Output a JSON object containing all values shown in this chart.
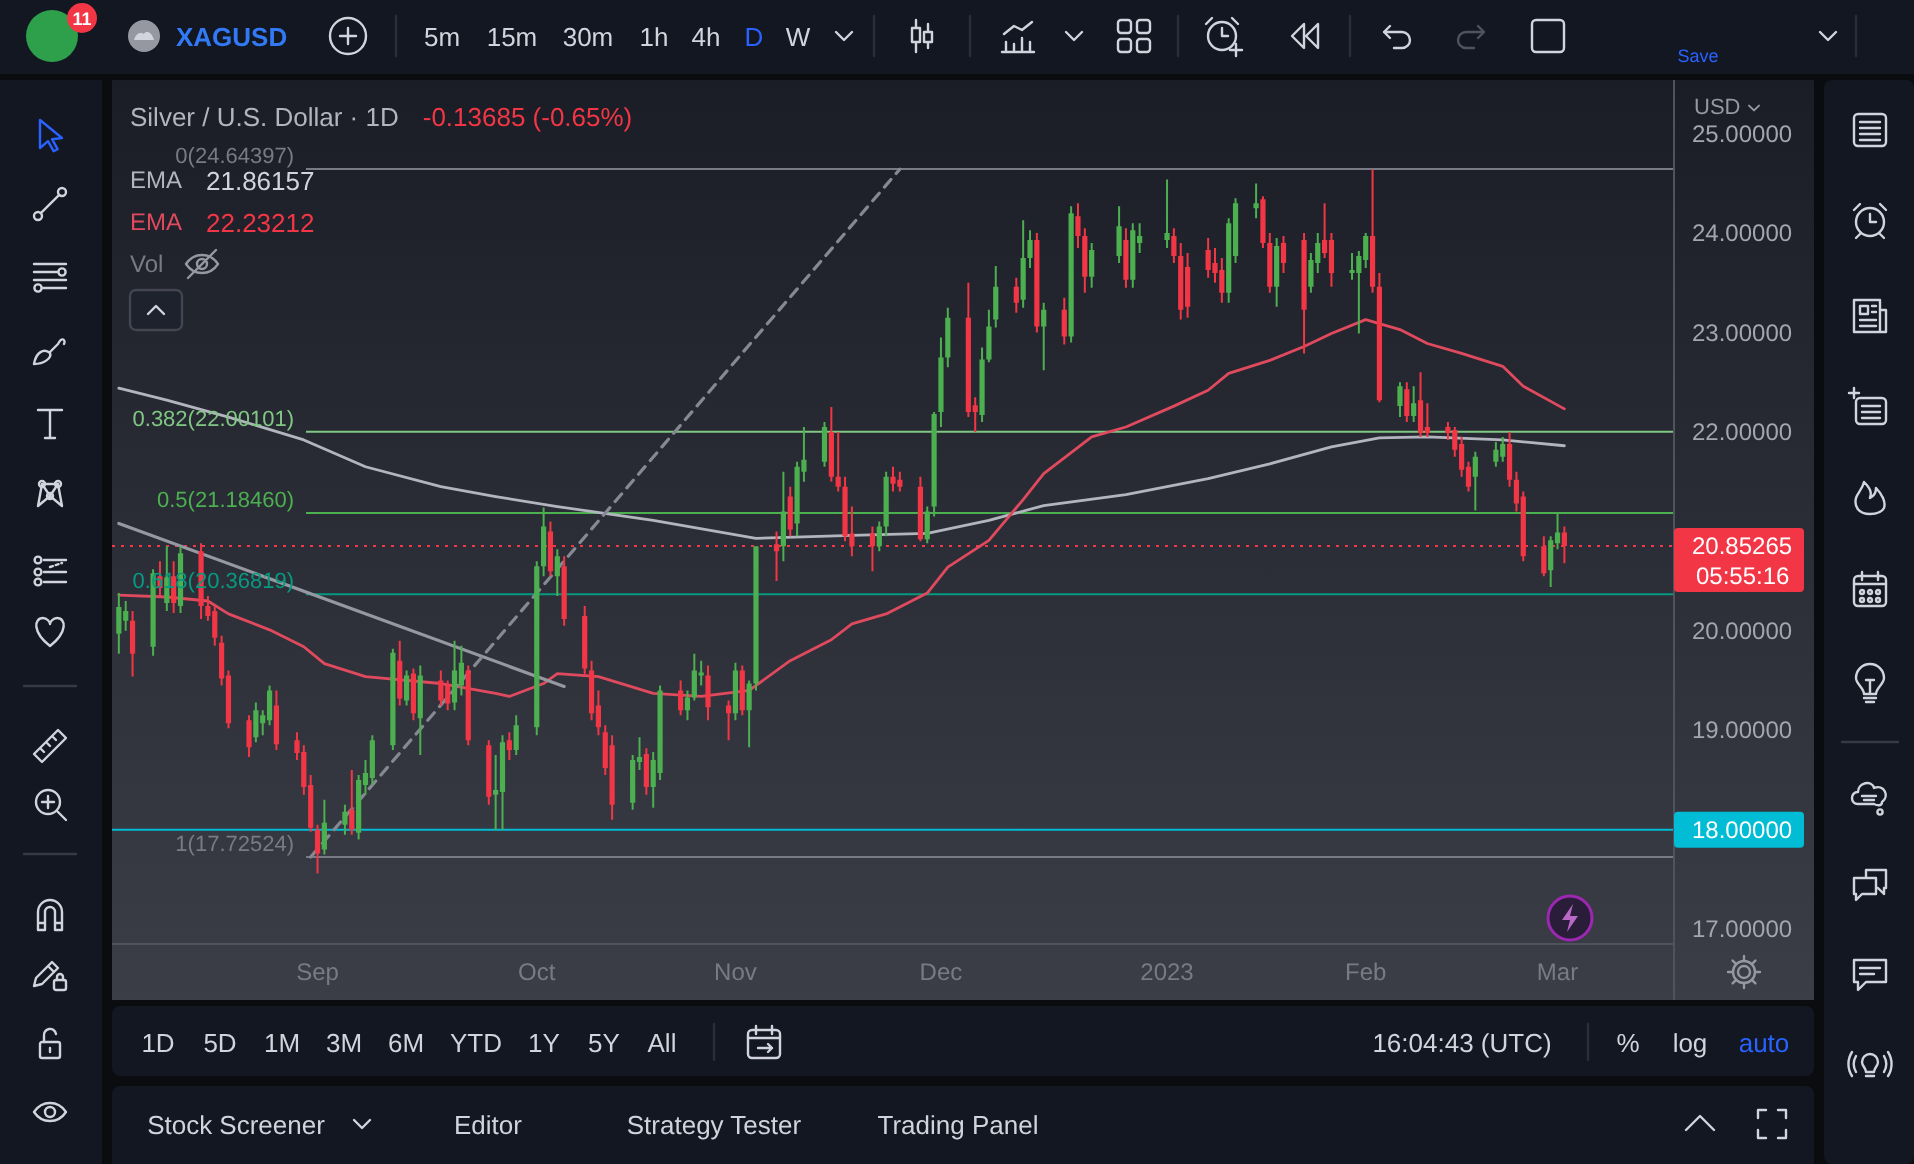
{
  "chart_data": {
    "type": "candlestick",
    "title": "Silver / U.S. Dollar · 1D",
    "subtitle": "-0.13685 (-0.65%)",
    "x": [
      "2022-08-03",
      "2022-08-04",
      "2022-08-05",
      "2022-08-08",
      "2022-08-09",
      "2022-08-10",
      "2022-08-11",
      "2022-08-12",
      "2022-08-15",
      "2022-08-16",
      "2022-08-17",
      "2022-08-18",
      "2022-08-19",
      "2022-08-22",
      "2022-08-23",
      "2022-08-24",
      "2022-08-25",
      "2022-08-26",
      "2022-08-29",
      "2022-08-30",
      "2022-08-31",
      "2022-09-01",
      "2022-09-02",
      "2022-09-05",
      "2022-09-06",
      "2022-09-07",
      "2022-09-08",
      "2022-09-09",
      "2022-09-12",
      "2022-09-13",
      "2022-09-14",
      "2022-09-15",
      "2022-09-16",
      "2022-09-19",
      "2022-09-20",
      "2022-09-21",
      "2022-09-22",
      "2022-09-23",
      "2022-09-26",
      "2022-09-27",
      "2022-09-28",
      "2022-09-29",
      "2022-09-30",
      "2022-10-03",
      "2022-10-04",
      "2022-10-05",
      "2022-10-06",
      "2022-10-07",
      "2022-10-10",
      "2022-10-11",
      "2022-10-12",
      "2022-10-13",
      "2022-10-14",
      "2022-10-17",
      "2022-10-18",
      "2022-10-19",
      "2022-10-20",
      "2022-10-21",
      "2022-10-24",
      "2022-10-25",
      "2022-10-26",
      "2022-10-27",
      "2022-10-28",
      "2022-10-31",
      "2022-11-01",
      "2022-11-02",
      "2022-11-03",
      "2022-11-04",
      "2022-11-07",
      "2022-11-08",
      "2022-11-09",
      "2022-11-10",
      "2022-11-11",
      "2022-11-14",
      "2022-11-15",
      "2022-11-16",
      "2022-11-17",
      "2022-11-18",
      "2022-11-21",
      "2022-11-22",
      "2022-11-23",
      "2022-11-24",
      "2022-11-25",
      "2022-11-28",
      "2022-11-29",
      "2022-11-30",
      "2022-12-01",
      "2022-12-02",
      "2022-12-05",
      "2022-12-06",
      "2022-12-07",
      "2022-12-08",
      "2022-12-09",
      "2022-12-12",
      "2022-12-13",
      "2022-12-14",
      "2022-12-15",
      "2022-12-16",
      "2022-12-19",
      "2022-12-20",
      "2022-12-21",
      "2022-12-22",
      "2022-12-23",
      "2022-12-27",
      "2022-12-28",
      "2022-12-29",
      "2022-12-30",
      "2023-01-03",
      "2023-01-04",
      "2023-01-05",
      "2023-01-06",
      "2023-01-09",
      "2023-01-10",
      "2023-01-11",
      "2023-01-12",
      "2023-01-13",
      "2023-01-16",
      "2023-01-17",
      "2023-01-18",
      "2023-01-19",
      "2023-01-20",
      "2023-01-23",
      "2023-01-24",
      "2023-01-25",
      "2023-01-26",
      "2023-01-27",
      "2023-01-30",
      "2023-01-31",
      "2023-02-01",
      "2023-02-02",
      "2023-02-03",
      "2023-02-06",
      "2023-02-07",
      "2023-02-08",
      "2023-02-09",
      "2023-02-10",
      "2023-02-13",
      "2023-02-14",
      "2023-02-15",
      "2023-02-16",
      "2023-02-17",
      "2023-02-20",
      "2023-02-21",
      "2023-02-22",
      "2023-02-23",
      "2023-02-24",
      "2023-02-27",
      "2023-02-28",
      "2023-03-01",
      "2023-03-02"
    ],
    "ohlc": [
      [
        19.97,
        20.38,
        19.77,
        20.24
      ],
      [
        20.1,
        20.3,
        20.0,
        20.2
      ],
      [
        20.1,
        20.2,
        19.54,
        19.77
      ],
      [
        19.84,
        20.62,
        19.75,
        20.58
      ],
      [
        20.55,
        20.7,
        20.35,
        20.43
      ],
      [
        20.28,
        20.85,
        20.2,
        20.54
      ],
      [
        20.55,
        20.7,
        20.18,
        20.28
      ],
      [
        20.25,
        20.85,
        20.18,
        20.78
      ],
      [
        20.8,
        20.88,
        20.12,
        20.25
      ],
      [
        20.25,
        20.35,
        20.1,
        20.15
      ],
      [
        20.2,
        20.25,
        19.85,
        19.93
      ],
      [
        19.88,
        19.95,
        19.45,
        19.52
      ],
      [
        19.55,
        19.6,
        19.02,
        19.07
      ],
      [
        19.1,
        19.15,
        18.73,
        18.83
      ],
      [
        18.93,
        19.28,
        18.88,
        19.2
      ],
      [
        19.07,
        19.2,
        18.95,
        19.15
      ],
      [
        19.1,
        19.45,
        19.05,
        19.4
      ],
      [
        19.25,
        19.4,
        18.8,
        18.86
      ],
      [
        18.9,
        18.98,
        18.7,
        18.77
      ],
      [
        18.78,
        18.85,
        18.35,
        18.43
      ],
      [
        18.45,
        18.55,
        17.98,
        18.02
      ],
      [
        18.0,
        18.05,
        17.56,
        17.76
      ],
      [
        17.8,
        18.3,
        17.75,
        18.07
      ],
      [
        18.05,
        18.25,
        17.95,
        18.18
      ],
      [
        18.2,
        18.6,
        17.95,
        18.0
      ],
      [
        17.97,
        18.55,
        17.9,
        18.5
      ],
      [
        18.45,
        18.7,
        18.35,
        18.57
      ],
      [
        18.52,
        18.95,
        18.45,
        18.9
      ],
      [
        18.85,
        19.82,
        18.8,
        19.78
      ],
      [
        19.7,
        19.9,
        19.25,
        19.32
      ],
      [
        19.3,
        19.6,
        19.25,
        19.55
      ],
      [
        19.57,
        19.62,
        19.1,
        19.17
      ],
      [
        19.12,
        19.65,
        18.75,
        19.55
      ],
      [
        19.5,
        19.6,
        19.25,
        19.3
      ],
      [
        19.45,
        19.5,
        19.2,
        19.27
      ],
      [
        19.28,
        19.9,
        19.2,
        19.6
      ],
      [
        19.45,
        19.85,
        19.35,
        19.68
      ],
      [
        19.6,
        19.65,
        18.85,
        18.9
      ],
      [
        18.85,
        18.9,
        18.25,
        18.33
      ],
      [
        18.35,
        18.75,
        18.0,
        18.4
      ],
      [
        18.38,
        18.95,
        18.0,
        18.88
      ],
      [
        18.9,
        18.98,
        18.7,
        18.8
      ],
      [
        18.8,
        19.15,
        18.75,
        19.05
      ],
      [
        19.03,
        20.7,
        18.95,
        20.65
      ],
      [
        20.65,
        21.24,
        20.55,
        21.05
      ],
      [
        21.0,
        21.1,
        20.55,
        20.6
      ],
      [
        20.55,
        20.82,
        20.35,
        20.75
      ],
      [
        20.65,
        20.75,
        20.05,
        20.12
      ],
      [
        20.15,
        20.25,
        19.55,
        19.62
      ],
      [
        19.6,
        19.7,
        19.1,
        19.17
      ],
      [
        19.25,
        19.4,
        18.95,
        19.03
      ],
      [
        18.98,
        19.05,
        18.55,
        18.62
      ],
      [
        18.85,
        18.95,
        18.1,
        18.25
      ],
      [
        18.27,
        18.75,
        18.2,
        18.7
      ],
      [
        18.68,
        18.93,
        18.6,
        18.73
      ],
      [
        18.76,
        18.82,
        18.35,
        18.43
      ],
      [
        18.43,
        18.78,
        18.22,
        18.7
      ],
      [
        18.57,
        19.45,
        18.5,
        19.4
      ],
      [
        19.4,
        19.5,
        19.15,
        19.2
      ],
      [
        19.2,
        19.4,
        19.1,
        19.33
      ],
      [
        19.33,
        19.77,
        19.3,
        19.6
      ],
      [
        19.55,
        19.7,
        19.45,
        19.58
      ],
      [
        19.55,
        19.65,
        19.1,
        19.23
      ],
      [
        19.25,
        19.3,
        18.9,
        19.17
      ],
      [
        19.17,
        19.68,
        19.1,
        19.6
      ],
      [
        19.6,
        19.65,
        19.15,
        19.2
      ],
      [
        19.2,
        19.5,
        18.83,
        19.47
      ],
      [
        19.47,
        20.85,
        19.4,
        20.85
      ],
      [
        20.87,
        21.0,
        20.5,
        20.8
      ],
      [
        20.85,
        21.6,
        20.7,
        21.2
      ],
      [
        21.35,
        21.45,
        20.95,
        21.02
      ],
      [
        21.08,
        21.7,
        20.95,
        21.65
      ],
      [
        21.6,
        22.05,
        21.5,
        21.72
      ],
      [
        21.7,
        22.1,
        21.65,
        22.05
      ],
      [
        22.0,
        22.25,
        21.5,
        21.55
      ],
      [
        21.55,
        22.0,
        21.4,
        21.45
      ],
      [
        21.45,
        21.55,
        20.9,
        20.95
      ],
      [
        20.98,
        21.25,
        20.75,
        20.85
      ],
      [
        20.98,
        21.05,
        20.6,
        20.85
      ],
      [
        20.85,
        21.1,
        20.8,
        21.05
      ],
      [
        21.05,
        21.6,
        20.95,
        21.55
      ],
      [
        21.55,
        21.65,
        21.4,
        21.48
      ],
      [
        21.52,
        21.6,
        21.4,
        21.45
      ],
      [
        21.45,
        21.55,
        20.9,
        20.92
      ],
      [
        20.92,
        21.25,
        20.88,
        21.2
      ],
      [
        21.25,
        22.2,
        21.15,
        22.18
      ],
      [
        22.2,
        22.95,
        22.05,
        22.75
      ],
      [
        22.75,
        23.25,
        22.65,
        23.15
      ],
      [
        23.15,
        23.5,
        22.15,
        22.2
      ],
      [
        22.27,
        22.35,
        22.0,
        22.2
      ],
      [
        22.17,
        22.85,
        22.1,
        22.73
      ],
      [
        22.73,
        23.23,
        22.7,
        23.06
      ],
      [
        23.13,
        23.67,
        23.05,
        23.46
      ],
      [
        23.46,
        23.55,
        23.2,
        23.3
      ],
      [
        23.33,
        24.13,
        23.25,
        23.75
      ],
      [
        23.75,
        24.03,
        23.65,
        23.93
      ],
      [
        23.93,
        24.0,
        23.0,
        23.06
      ],
      [
        23.06,
        23.3,
        22.62,
        23.23
      ],
      [
        23.23,
        23.35,
        22.88,
        22.96
      ],
      [
        22.96,
        24.27,
        22.9,
        24.2
      ],
      [
        24.17,
        24.3,
        23.85,
        23.97
      ],
      [
        23.97,
        24.05,
        23.4,
        23.56
      ],
      [
        23.56,
        23.9,
        23.45,
        23.83
      ],
      [
        23.77,
        24.27,
        23.7,
        24.07
      ],
      [
        23.93,
        24.05,
        23.45,
        23.53
      ],
      [
        23.53,
        24.1,
        23.45,
        24.03
      ],
      [
        23.9,
        24.1,
        23.8,
        23.97
      ],
      [
        23.93,
        24.54,
        23.85,
        24.0
      ],
      [
        23.97,
        24.05,
        23.7,
        23.77
      ],
      [
        23.77,
        23.9,
        23.13,
        23.23
      ],
      [
        23.66,
        23.8,
        23.15,
        23.26
      ],
      [
        23.83,
        23.95,
        23.55,
        23.63
      ],
      [
        23.7,
        23.85,
        23.5,
        23.6
      ],
      [
        23.63,
        23.75,
        23.3,
        23.4
      ],
      [
        23.4,
        24.15,
        23.3,
        24.1
      ],
      [
        23.77,
        24.35,
        23.7,
        24.3
      ],
      [
        24.25,
        24.5,
        24.15,
        24.3
      ],
      [
        24.34,
        24.37,
        23.85,
        23.9
      ],
      [
        23.9,
        24.0,
        23.4,
        23.46
      ],
      [
        23.46,
        23.95,
        23.26,
        23.87
      ],
      [
        23.9,
        23.97,
        23.6,
        23.7
      ],
      [
        23.93,
        24.0,
        22.79,
        23.23
      ],
      [
        23.46,
        23.8,
        23.4,
        23.73
      ],
      [
        23.7,
        24.0,
        23.6,
        23.9
      ],
      [
        23.93,
        24.3,
        23.75,
        23.8
      ],
      [
        23.93,
        24.0,
        23.46,
        23.6
      ],
      [
        23.6,
        23.8,
        23.53,
        23.63
      ],
      [
        23.6,
        23.82,
        22.99,
        23.77
      ],
      [
        23.73,
        24.0,
        23.65,
        23.97
      ],
      [
        23.97,
        24.64,
        23.4,
        23.46
      ],
      [
        23.46,
        23.6,
        22.3,
        22.32
      ],
      [
        22.26,
        22.5,
        22.15,
        22.46
      ],
      [
        22.43,
        22.5,
        22.1,
        22.16
      ],
      [
        22.16,
        22.46,
        22.1,
        22.29
      ],
      [
        22.32,
        22.6,
        21.95,
        21.99
      ],
      [
        22.05,
        22.29,
        21.95,
        21.99
      ],
      [
        22.05,
        22.1,
        21.92,
        21.99
      ],
      [
        22.02,
        22.05,
        21.75,
        21.82
      ],
      [
        21.88,
        21.95,
        21.55,
        21.62
      ],
      [
        21.65,
        21.7,
        21.4,
        21.45
      ],
      [
        21.55,
        21.8,
        21.21,
        21.75
      ],
      [
        21.7,
        21.9,
        21.65,
        21.82
      ],
      [
        21.75,
        21.95,
        21.7,
        21.88
      ],
      [
        21.88,
        22.0,
        21.45,
        21.52
      ],
      [
        21.52,
        21.6,
        21.2,
        21.28
      ],
      [
        21.35,
        21.4,
        20.7,
        20.75
      ],
      [
        20.85,
        20.95,
        20.55,
        20.58
      ],
      [
        20.61,
        20.95,
        20.44,
        20.91
      ],
      [
        20.88,
        21.18,
        20.82,
        20.99
      ],
      [
        20.99,
        21.05,
        20.68,
        20.85265
      ]
    ],
    "colors": [
      "#4caf50",
      "#4caf50",
      "#f23645",
      "#4caf50",
      "#f23645",
      "#4caf50",
      "#f23645",
      "#4caf50",
      "#f23645",
      "#f23645",
      "#f23645",
      "#f23645",
      "#f23645",
      "#f23645",
      "#4caf50",
      "#4caf50",
      "#4caf50",
      "#f23645",
      "#f23645",
      "#f23645",
      "#f23645",
      "#f23645",
      "#4caf50",
      "#4caf50",
      "#f23645",
      "#4caf50",
      "#4caf50",
      "#4caf50",
      "#4caf50",
      "#f23645",
      "#4caf50",
      "#f23645",
      "#4caf50",
      "#f23645",
      "#f23645",
      "#4caf50",
      "#4caf50",
      "#f23645",
      "#f23645",
      "#4caf50",
      "#4caf50",
      "#f23645",
      "#4caf50",
      "#4caf50",
      "#4caf50",
      "#f23645",
      "#4caf50",
      "#f23645",
      "#f23645",
      "#f23645",
      "#f23645",
      "#f23645",
      "#f23645",
      "#4caf50",
      "#4caf50",
      "#f23645",
      "#4caf50",
      "#4caf50",
      "#f23645",
      "#4caf50",
      "#4caf50",
      "#4caf50",
      "#f23645",
      "#f23645",
      "#4caf50",
      "#f23645",
      "#4caf50",
      "#4caf50",
      "#f23645",
      "#4caf50",
      "#f23645",
      "#4caf50",
      "#4caf50",
      "#4caf50",
      "#f23645",
      "#f23645",
      "#f23645",
      "#f23645",
      "#f23645",
      "#4caf50",
      "#4caf50",
      "#f23645",
      "#f23645",
      "#f23645",
      "#4caf50",
      "#4caf50",
      "#4caf50",
      "#4caf50",
      "#f23645",
      "#f23645",
      "#4caf50",
      "#4caf50",
      "#4caf50",
      "#f23645",
      "#4caf50",
      "#4caf50",
      "#f23645",
      "#4caf50",
      "#f23645",
      "#4caf50",
      "#f23645",
      "#f23645",
      "#4caf50",
      "#4caf50",
      "#f23645",
      "#4caf50",
      "#4caf50",
      "#4caf50",
      "#f23645",
      "#f23645",
      "#f23645",
      "#f23645",
      "#f23645",
      "#f23645",
      "#4caf50",
      "#4caf50",
      "#4caf50",
      "#f23645",
      "#f23645",
      "#4caf50",
      "#f23645",
      "#f23645",
      "#4caf50",
      "#4caf50",
      "#f23645",
      "#f23645",
      "#4caf50",
      "#4caf50",
      "#4caf50",
      "#f23645",
      "#f23645",
      "#4caf50",
      "#f23645",
      "#4caf50",
      "#f23645",
      "#f23645",
      "#f23645",
      "#f23645",
      "#f23645",
      "#f23645",
      "#4caf50",
      "#4caf50",
      "#4caf50",
      "#f23645",
      "#f23645",
      "#f23645",
      "#f23645",
      "#4caf50",
      "#4caf50",
      "#f23645"
    ],
    "series": [
      {
        "name": "EMA",
        "type": "line",
        "color": "#b2b5be",
        "x": [
          "2022-08-03",
          "2022-08-10",
          "2022-08-19",
          "2022-08-30",
          "2022-09-08",
          "2022-09-19",
          "2022-09-27",
          "2022-10-06",
          "2022-10-20",
          "2022-11-04",
          "2022-11-18",
          "2022-11-29",
          "2022-12-08",
          "2022-12-16",
          "2022-12-28",
          "2023-01-09",
          "2023-01-18",
          "2023-01-27",
          "2023-02-03",
          "2023-02-10",
          "2023-02-21",
          "2023-03-02"
        ],
        "values": [
          22.44,
          22.32,
          22.15,
          21.92,
          21.65,
          21.45,
          21.35,
          21.25,
          21.11,
          20.93,
          20.96,
          20.98,
          21.11,
          21.26,
          21.37,
          21.53,
          21.68,
          21.85,
          21.94,
          21.95,
          21.92,
          21.86157
        ]
      },
      {
        "name": "EMA",
        "type": "line",
        "color": "#e04a5e",
        "x": [
          "2022-08-03",
          "2022-08-10",
          "2022-08-16",
          "2022-08-19",
          "2022-08-25",
          "2022-08-30",
          "2022-09-02",
          "2022-09-08",
          "2022-09-19",
          "2022-09-27",
          "2022-09-29",
          "2022-10-04",
          "2022-10-06",
          "2022-10-12",
          "2022-10-20",
          "2022-10-27",
          "2022-11-03",
          "2022-11-09",
          "2022-11-15",
          "2022-11-18",
          "2022-11-23",
          "2022-11-29",
          "2022-12-02",
          "2022-12-08",
          "2022-12-13",
          "2022-12-16",
          "2022-12-23",
          "2022-12-28",
          "2023-01-04",
          "2023-01-09",
          "2023-01-12",
          "2023-01-18",
          "2023-01-23",
          "2023-01-27",
          "2023-02-01",
          "2023-02-02",
          "2023-02-06",
          "2023-02-10",
          "2023-02-15",
          "2023-02-21",
          "2023-02-24",
          "2023-03-02"
        ],
        "values": [
          20.36,
          20.34,
          20.3,
          20.17,
          20.01,
          19.84,
          19.67,
          19.54,
          19.47,
          19.37,
          19.34,
          19.47,
          19.57,
          19.54,
          19.37,
          19.34,
          19.4,
          19.7,
          19.91,
          20.07,
          20.17,
          20.38,
          20.64,
          20.91,
          21.32,
          21.58,
          21.95,
          22.05,
          22.26,
          22.42,
          22.59,
          22.72,
          22.86,
          22.99,
          23.13,
          23.11,
          23.03,
          22.89,
          22.79,
          22.66,
          22.46,
          22.23212
        ]
      },
      {
        "type": "line",
        "color": "#9598a1",
        "x": [
          "2022-08-03",
          "2022-10-07"
        ],
        "values": [
          21.08,
          19.44
        ]
      },
      {
        "type": "line",
        "color": "#868993",
        "line_style": "dashed",
        "x": [
          "2022-08-31",
          "2022-11-25"
        ],
        "values": [
          17.72524,
          24.64397
        ]
      }
    ],
    "xlim": [
      "2022-08-02",
      "2023-03-18"
    ],
    "xticks": [
      {
        "value": "2022-09-01",
        "label": "Sep"
      },
      {
        "value": "2022-10-03",
        "label": "Oct"
      },
      {
        "value": "2022-11-01",
        "label": "Nov"
      },
      {
        "value": "2022-12-01",
        "label": "Dec"
      },
      {
        "value": "2023-01-03",
        "label": "2023"
      },
      {
        "value": "2023-02-01",
        "label": "Feb"
      },
      {
        "value": "2023-03-01",
        "label": "Mar"
      }
    ],
    "ylim": [
      16.85,
      25.52
    ],
    "yticks": [
      {
        "value": 17,
        "label": "17.00000"
      },
      {
        "value": 19,
        "label": "19.00000"
      },
      {
        "value": 20,
        "label": "20.00000"
      },
      {
        "value": 22,
        "label": "22.00000"
      },
      {
        "value": 23,
        "label": "23.00000"
      },
      {
        "value": 24,
        "label": "24.00000"
      },
      {
        "value": 25,
        "label": "25.00000"
      }
    ],
    "ref_lines": [
      {
        "axis": "y",
        "value": 24.64397,
        "label": "0(24.64397)",
        "color": "#787b86"
      },
      {
        "axis": "y",
        "value": 22.00101,
        "label": "0.382(22.00101)",
        "color": "#81c784"
      },
      {
        "axis": "y",
        "value": 21.1846,
        "label": "0.5(21.18460)",
        "color": "#4caf50"
      },
      {
        "axis": "y",
        "value": 20.36819,
        "label": "0.618(20.36819)",
        "color": "#089981"
      },
      {
        "axis": "y",
        "value": 17.72524,
        "label": "1(17.72524)",
        "color": "#787b86"
      },
      {
        "axis": "y",
        "value": 18,
        "label": "18.00000",
        "color": "#00bcd4"
      },
      {
        "axis": "y",
        "value": 20.85265,
        "label": "20.85265",
        "color": "#f23645",
        "line_style": "dotted"
      }
    ],
    "legend": "top left",
    "annotations": [
      "05:55:16",
      "Vol",
      "XAGUSD",
      "11",
      "5m",
      "15m",
      "30m",
      "1h",
      "4h",
      "D",
      "W",
      "Save",
      "USD",
      "1D",
      "5D",
      "1M",
      "3M",
      "6M",
      "YTD",
      "1Y",
      "5Y",
      "All",
      "16:04:43 (UTC)",
      "%",
      "log",
      "auto",
      "Stock Screener",
      "Editor",
      "Strategy Tester",
      "Trading Panel",
      "21.86157",
      "22.23212"
    ]
  }
}
